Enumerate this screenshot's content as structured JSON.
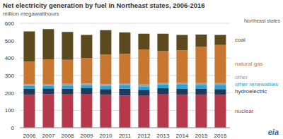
{
  "chart_data": {
    "type": "bar",
    "title": "Net electricity generation by fuel in Northeast states, 2006-2016",
    "subtitle": "million megawatthours",
    "annotations": [
      "Northeast states",
      "eia"
    ],
    "categories": [
      "2006",
      "2007",
      "2008",
      "2009",
      "2010",
      "2011",
      "2012",
      "2013",
      "2014",
      "2015",
      "2016"
    ],
    "stacked": true,
    "grid": true,
    "ylim": [
      0,
      600
    ],
    "yticks": [
      0,
      100,
      200,
      300,
      400,
      500,
      600
    ],
    "series": [
      {
        "name": "nuclear",
        "color": "#b5394b",
        "values": [
          190,
          193,
          192,
          192,
          190,
          185,
          183,
          192,
          190,
          190,
          190
        ]
      },
      {
        "name": "hydroelectric",
        "color": "#1f3a5a",
        "values": [
          35,
          33,
          33,
          35,
          32,
          40,
          35,
          35,
          35,
          33,
          32
        ]
      },
      {
        "name": "other renewables",
        "color": "#29a3d6",
        "values": [
          15,
          15,
          17,
          17,
          18,
          20,
          20,
          22,
          22,
          23,
          24
        ]
      },
      {
        "name": "other",
        "color": "#a0a0a0",
        "values": [
          10,
          10,
          10,
          10,
          10,
          10,
          10,
          10,
          10,
          10,
          10
        ]
      },
      {
        "name": "natural gas",
        "color": "#c7772f",
        "values": [
          130,
          142,
          138,
          146,
          170,
          170,
          202,
          181,
          188,
          209,
          219
        ]
      },
      {
        "name": "coal",
        "color": "#5c4a1e",
        "values": [
          173,
          174,
          160,
          133,
          140,
          122,
          90,
          100,
          88,
          70,
          58
        ]
      }
    ]
  }
}
